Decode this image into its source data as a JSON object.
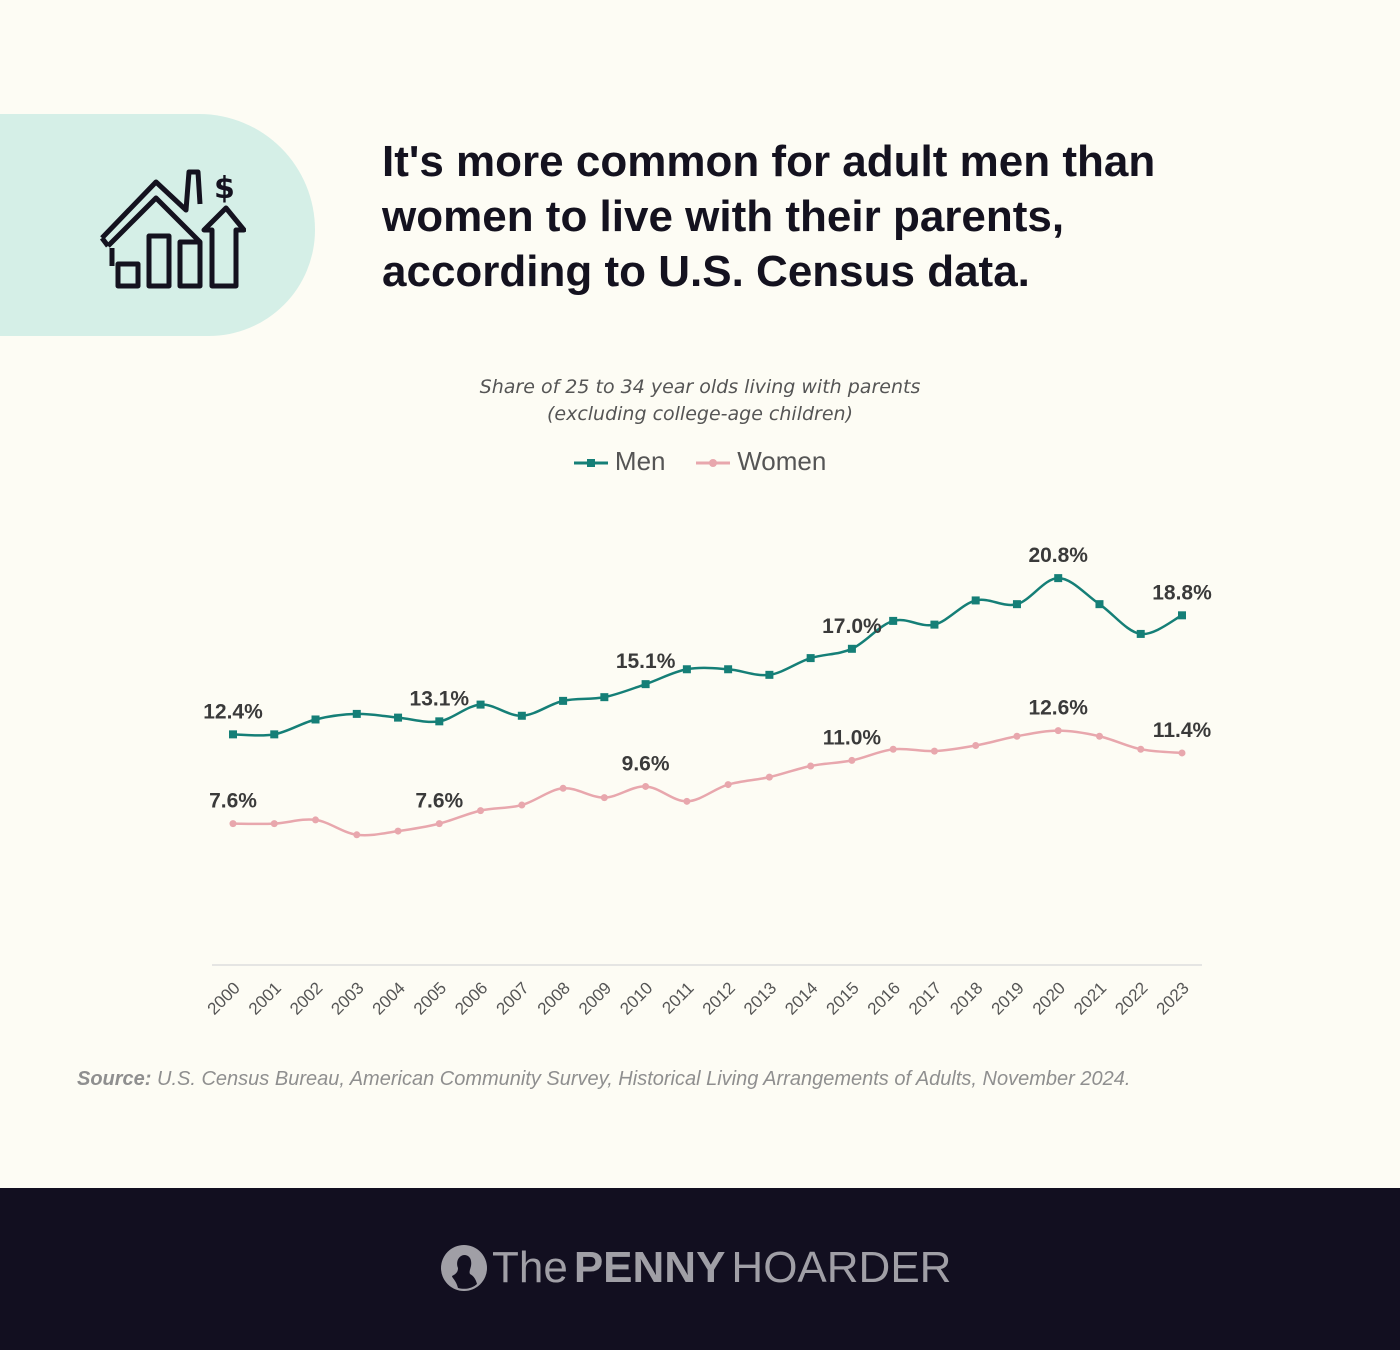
{
  "header": {
    "title": "It's more common for adult men than women to live with their parents, according to U.S. Census data."
  },
  "chart_data": {
    "type": "line",
    "title": "Share of 25 to 34 year olds living with parents",
    "subtitle": "(excluding college-age children)",
    "x": [
      "2000",
      "2001",
      "2002",
      "2003",
      "2004",
      "2005",
      "2006",
      "2007",
      "2008",
      "2009",
      "2010",
      "2011",
      "2012",
      "2013",
      "2014",
      "2015",
      "2016",
      "2017",
      "2018",
      "2019",
      "2020",
      "2021",
      "2022",
      "2023"
    ],
    "ylim": [
      0,
      22
    ],
    "grid": false,
    "legend_position": "top-center",
    "series": [
      {
        "name": "Men",
        "color": "#157f77",
        "marker": "square",
        "values": [
          12.4,
          12.4,
          13.2,
          13.5,
          13.3,
          13.1,
          14.0,
          13.4,
          14.2,
          14.4,
          15.1,
          15.9,
          15.9,
          15.6,
          16.5,
          17.0,
          18.5,
          18.3,
          19.6,
          19.4,
          20.8,
          19.4,
          17.8,
          18.8
        ],
        "labels": {
          "0": "12.4%",
          "5": "13.1%",
          "10": "15.1%",
          "15": "17.0%",
          "20": "20.8%",
          "23": "18.8%"
        }
      },
      {
        "name": "Women",
        "color": "#e8a7ad",
        "marker": "circle",
        "values": [
          7.6,
          7.6,
          7.8,
          7.0,
          7.2,
          7.6,
          8.3,
          8.6,
          9.5,
          9.0,
          9.6,
          8.8,
          9.7,
          10.1,
          10.7,
          11.0,
          11.6,
          11.5,
          11.8,
          12.3,
          12.6,
          12.3,
          11.6,
          11.4
        ],
        "labels": {
          "0": "7.6%",
          "5": "7.6%",
          "10": "9.6%",
          "15": "11.0%",
          "20": "12.6%",
          "23": "11.4%"
        }
      }
    ]
  },
  "source": {
    "label": "Source:",
    "text": "U.S. Census Bureau, American Community Survey, Historical Living Arrangements of Adults, November 2024."
  },
  "footer": {
    "logo_the": "The",
    "logo_penny": "PENNY",
    "logo_hoarder": "HOARDER"
  }
}
